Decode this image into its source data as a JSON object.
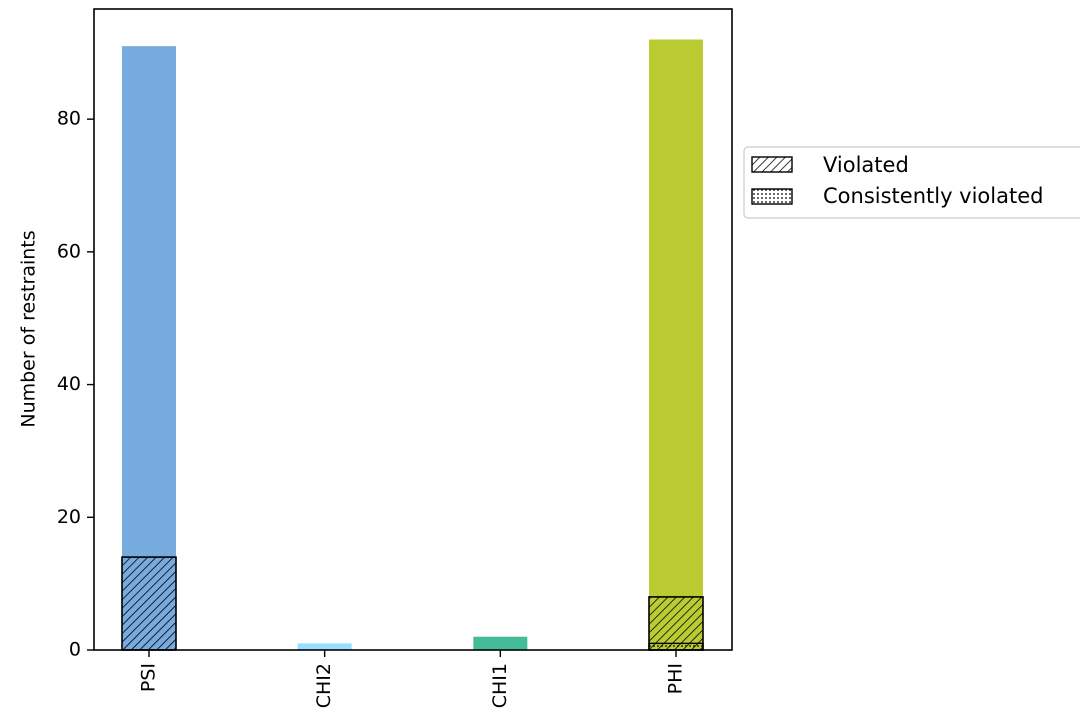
{
  "chart_data": {
    "type": "bar",
    "categories": [
      "PSI",
      "CHI2",
      "CHI1",
      "PHI"
    ],
    "colors": [
      "#77aadd",
      "#99ddff",
      "#44bb99",
      "#bbcc33"
    ],
    "series": [
      {
        "name": "",
        "values": [
          91,
          1,
          2,
          92
        ]
      },
      {
        "name": "Violated",
        "values": [
          14,
          0,
          0,
          8
        ],
        "pattern": "diagonal-hatch"
      },
      {
        "name": "Consistently violated",
        "values": [
          0,
          0,
          0,
          1
        ],
        "pattern": "dots"
      }
    ],
    "xlabel": "",
    "ylabel": "Number of restraints",
    "yticks": [
      0,
      20,
      40,
      60,
      80
    ],
    "ylim": [
      0,
      96.6
    ],
    "legend": {
      "placement": "right-outside",
      "entries": [
        "Violated",
        "Consistently violated"
      ]
    },
    "grid": false
  }
}
